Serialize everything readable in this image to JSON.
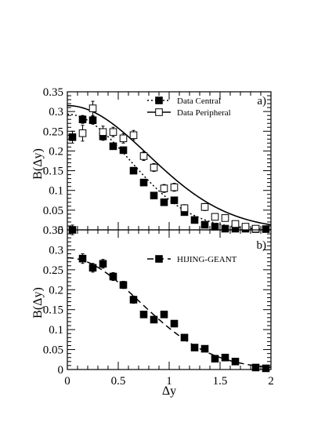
{
  "chart_data": [
    {
      "type": "scatter",
      "panel_label": "a)",
      "xlabel": "Δy",
      "ylabel": "B(Δy)",
      "xlim": [
        0,
        2
      ],
      "ylim": [
        0,
        0.35
      ],
      "yticks": [
        "0",
        "0.05",
        "0.1",
        "0.15",
        "0.2",
        "0.25",
        "0.3",
        "0.35"
      ],
      "xticks": [],
      "legend_position": "top-right",
      "series": [
        {
          "name": "Data Central",
          "marker": "filled-square",
          "line": "dotted",
          "x": [
            0.05,
            0.15,
            0.25,
            0.35,
            0.45,
            0.55,
            0.65,
            0.75,
            0.85,
            0.95,
            1.05,
            1.15,
            1.25,
            1.35,
            1.45,
            1.55,
            1.65,
            1.75,
            1.85,
            1.95
          ],
          "y": [
            0.235,
            0.28,
            0.278,
            0.237,
            0.212,
            0.202,
            0.15,
            0.12,
            0.087,
            0.07,
            0.075,
            0.045,
            0.025,
            0.013,
            0.008,
            0.003,
            0.003,
            0.003,
            0.002,
            0.002
          ],
          "yerr": [
            0.015,
            0.01,
            0.01,
            0.01,
            0.008,
            0.008,
            0.007,
            0.006,
            0.006,
            0.006,
            0.006,
            0.005,
            0.005,
            0.004,
            0.004,
            0.003,
            0.003,
            0.003,
            0.002,
            0.002
          ]
        },
        {
          "name": "Data Peripheral",
          "marker": "open-square",
          "line": "solid",
          "x": [
            0.15,
            0.25,
            0.35,
            0.45,
            0.55,
            0.65,
            0.75,
            0.85,
            0.95,
            1.05,
            1.15,
            1.35,
            1.45,
            1.55,
            1.65,
            1.75,
            1.85
          ],
          "y": [
            0.245,
            0.308,
            0.248,
            0.248,
            0.232,
            0.24,
            0.187,
            0.158,
            0.105,
            0.108,
            0.055,
            0.058,
            0.033,
            0.03,
            0.015,
            0.008,
            0.003
          ],
          "yerr": [
            0.02,
            0.018,
            0.015,
            0.012,
            0.012,
            0.012,
            0.011,
            0.01,
            0.01,
            0.01,
            0.009,
            0.009,
            0.008,
            0.007,
            0.006,
            0.005,
            0.004
          ]
        }
      ],
      "fits": [
        {
          "series": "Data Central",
          "style": "dotted",
          "amplitude": 0.293,
          "sigma": 0.61
        },
        {
          "series": "Data Peripheral",
          "style": "solid",
          "amplitude": 0.315,
          "sigma": 0.79
        }
      ]
    },
    {
      "type": "scatter",
      "panel_label": "b)",
      "xlabel": "Δy",
      "ylabel": "B(Δy)",
      "xlim": [
        0,
        2
      ],
      "ylim": [
        0,
        0.35
      ],
      "yticks": [
        "0",
        "0.05",
        "0.1",
        "0.15",
        "0.2",
        "0.25",
        "0.3",
        "0.35"
      ],
      "xticks": [
        "0",
        "0.5",
        "1",
        "1.5",
        "2"
      ],
      "legend_position": "top-right",
      "series": [
        {
          "name": "HIJING-GEANT",
          "marker": "filled-square",
          "line": "dashed",
          "x": [
            0.05,
            0.15,
            0.25,
            0.35,
            0.45,
            0.55,
            0.65,
            0.75,
            0.85,
            0.95,
            1.05,
            1.15,
            1.25,
            1.35,
            1.45,
            1.55,
            1.65,
            1.85,
            1.95
          ],
          "y": [
            0.35,
            0.278,
            0.255,
            0.265,
            0.233,
            0.212,
            0.175,
            0.138,
            0.125,
            0.138,
            0.115,
            0.08,
            0.055,
            0.052,
            0.027,
            0.03,
            0.02,
            0.005,
            0.003
          ],
          "yerr": [
            0.012,
            0.012,
            0.011,
            0.011,
            0.01,
            0.009,
            0.009,
            0.008,
            0.008,
            0.008,
            0.007,
            0.006,
            0.005,
            0.005,
            0.004,
            0.004,
            0.003,
            0.003,
            0.002
          ]
        }
      ],
      "fits": [
        {
          "series": "HIJING-GEANT",
          "style": "dashed",
          "amplitude": 0.28,
          "sigma": 0.71
        }
      ]
    }
  ]
}
